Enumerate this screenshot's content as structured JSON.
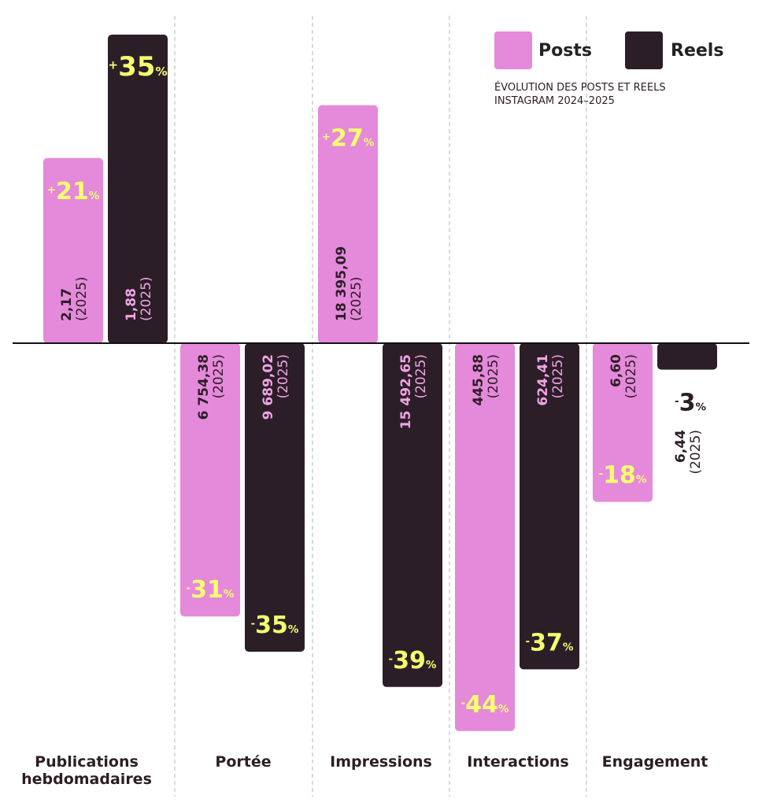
{
  "colors": {
    "posts": "#e589da",
    "reels": "#2c1e27",
    "accent": "#f5ff70",
    "dark_text": "#2b1e26",
    "label_on_pink": "#2b1e26",
    "label_on_dark": "#f0a4e6"
  },
  "legend": {
    "posts_label": "Posts",
    "reels_label": "Reels"
  },
  "subtitle": {
    "line1": "ÉVOLUTION DES POSTS ET REELS",
    "line2": "INSTAGRAM 2024–2025"
  },
  "categories": [
    "Publications hebdomadaires",
    "Portée",
    "Impressions",
    "Interactions",
    "Engagement"
  ],
  "chart_data": {
    "type": "bar",
    "categories": [
      "Publications hebdomadaires",
      "Portée",
      "Impressions",
      "Interactions",
      "Engagement"
    ],
    "value_unit": "%",
    "series": [
      {
        "name": "Posts",
        "values": [
          21,
          -31,
          27,
          -44,
          -18
        ],
        "labels": [
          "+21%",
          "-31%",
          "+27%",
          "-44%",
          "-18%"
        ],
        "values_2025": [
          "2,17",
          "6 754,38",
          "18 395,09",
          "445,88",
          "6,60"
        ]
      },
      {
        "name": "Reels",
        "values": [
          35,
          -35,
          -39,
          -37,
          -3
        ],
        "labels": [
          "+35%",
          "-35%",
          "-39%",
          "-37%",
          "-3%"
        ],
        "values_2025": [
          "1,88",
          "9 689,02",
          "15 492,65",
          "624,41",
          "6,44"
        ]
      }
    ],
    "year_note": "(2025)",
    "grid": false,
    "legend_position": "top-right"
  }
}
